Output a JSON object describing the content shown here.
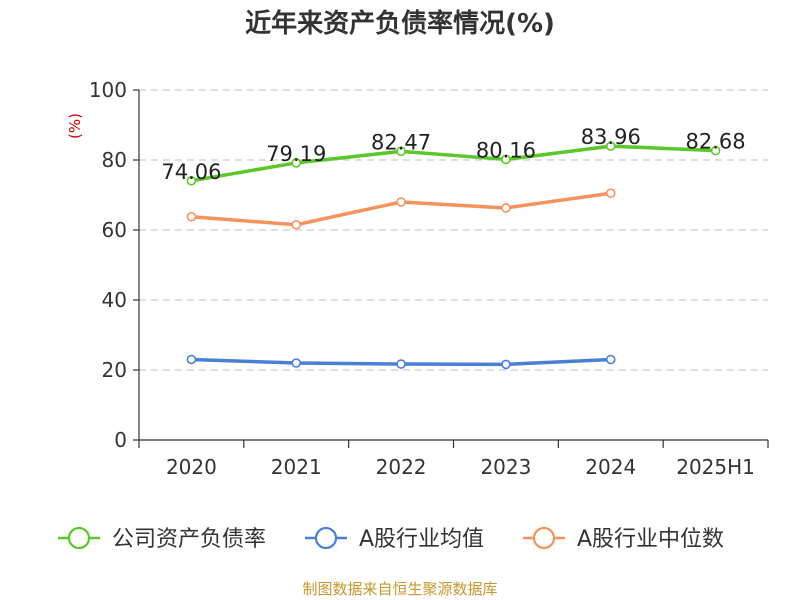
{
  "chart_data": {
    "type": "line",
    "title": "近年来资产负债率情况(%)",
    "ylabel": "(%)",
    "categories": [
      "2020",
      "2021",
      "2022",
      "2023",
      "2024",
      "2025H1"
    ],
    "y_ticks": [
      "0",
      "20",
      "40",
      "60",
      "80",
      "100"
    ],
    "ylim": [
      0,
      100
    ],
    "grid": true,
    "legend_position": "bottom",
    "series": [
      {
        "name": "公司资产负债率",
        "color": "#5cc72a",
        "values": [
          74.06,
          79.19,
          82.47,
          80.16,
          83.96,
          82.68
        ],
        "labels": [
          "74.06",
          "79.19",
          "82.47",
          "80.16",
          "83.96",
          "82.68"
        ]
      },
      {
        "name": "A股行业均值",
        "color": "#4a7fd6",
        "values": [
          23.0,
          22.0,
          21.7,
          21.6,
          23.0,
          null
        ]
      },
      {
        "name": "A股行业中位数",
        "color": "#f5925e",
        "values": [
          63.8,
          61.5,
          68.0,
          66.3,
          70.5,
          null
        ]
      }
    ],
    "source": "制图数据来自恒生聚源数据库"
  }
}
